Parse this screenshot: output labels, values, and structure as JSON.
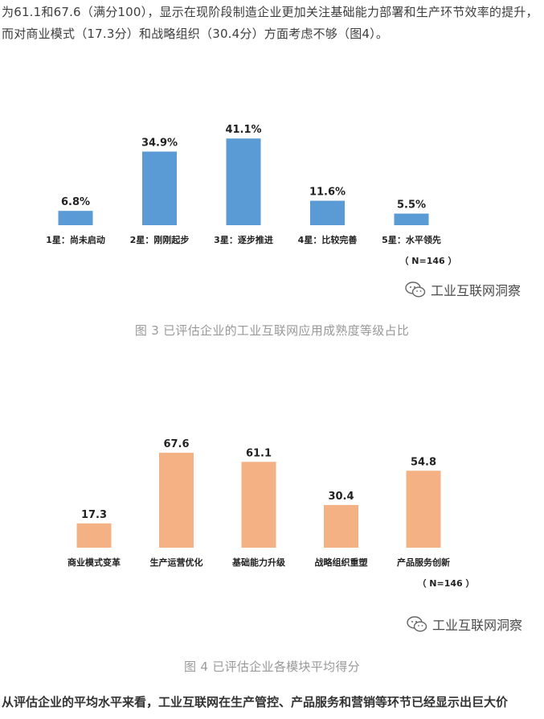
{
  "top_paragraph": "为61.1和67.6（满分100），显示在现阶段制造企业更加关注基础能力部署和生产环节效率的提升，而对商业模式（17.3分）和战略组织（30.4分）方面考虑不够（图4）。",
  "figure3": {
    "caption": "图 3 已评估企业的工业互联网应用成熟度等级占比",
    "watermark": "工业互联网洞察",
    "note": "（ N=146 ）",
    "color": "#5b9bd5"
  },
  "figure4": {
    "caption": "图 4 已评估企业各模块平均得分",
    "watermark": "工业互联网洞察",
    "note": "（ N=146 ）",
    "color": "#f4b183"
  },
  "bottom_paragraph": "从评估企业的平均水平来看，工业互联网在生产管控、产品服务和营销等环节已经显示出巨大价",
  "chart_data": [
    {
      "type": "bar",
      "categories": [
        "1星：尚未启动",
        "2星：刚刚起步",
        "3星：逐步推进",
        "4星：比较完善",
        "5星：水平领先"
      ],
      "values": [
        6.8,
        34.9,
        41.1,
        11.6,
        5.5
      ],
      "data_labels": [
        "6.8%",
        "34.9%",
        "41.1%",
        "11.6%",
        "5.5%"
      ],
      "ylim": [
        0,
        45
      ]
    },
    {
      "type": "bar",
      "categories": [
        "商业模式变革",
        "生产运营优化",
        "基础能力升级",
        "战略组织重塑",
        "产品服务创新"
      ],
      "values": [
        17.3,
        67.6,
        61.1,
        30.4,
        54.8
      ],
      "data_labels": [
        "17.3",
        "67.6",
        "61.1",
        "30.4",
        "54.8"
      ],
      "ylim": [
        0,
        75
      ]
    }
  ]
}
